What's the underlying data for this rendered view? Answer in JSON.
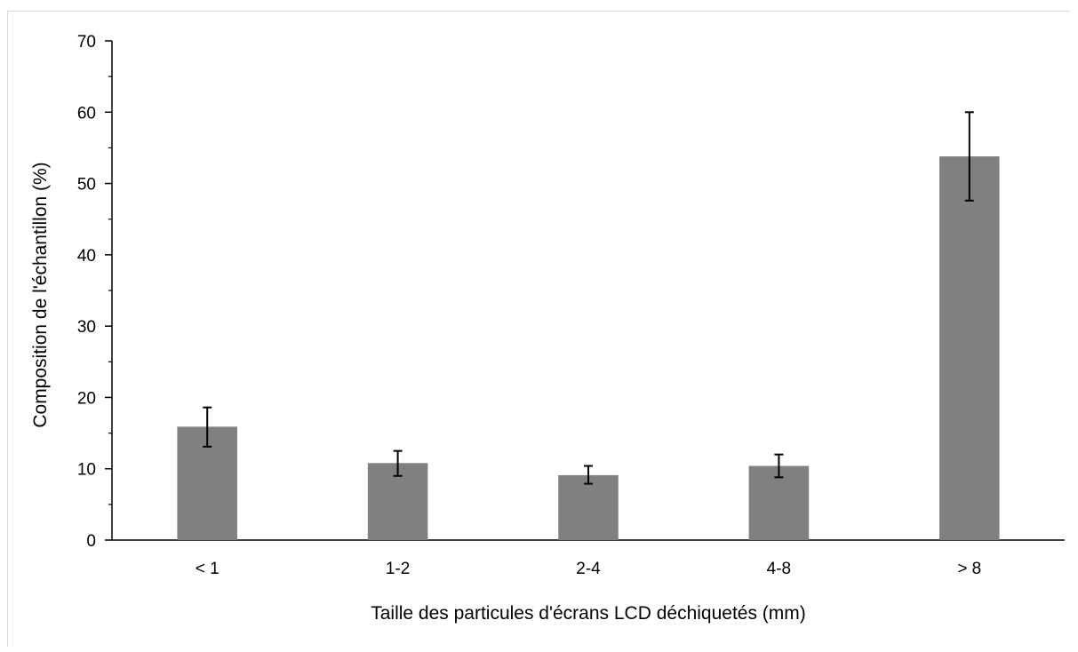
{
  "chart_data": {
    "type": "bar",
    "title": "",
    "xlabel": "Taille des particules d'écrans LCD déchiquetés (mm)",
    "ylabel": "Composition de l'échantillon (%)",
    "categories": [
      "< 1",
      "1-2",
      "2-4",
      "4-8",
      "> 8"
    ],
    "values": [
      15.9,
      10.8,
      9.1,
      10.4,
      53.8
    ],
    "error_low": [
      13.1,
      9.0,
      7.9,
      8.8,
      47.6
    ],
    "error_high": [
      18.6,
      12.5,
      10.4,
      12.0,
      60.0
    ],
    "ylim": [
      0,
      70
    ],
    "yticks": [
      "0",
      "10",
      "20",
      "30",
      "40",
      "50",
      "60",
      "70"
    ],
    "ytick_values": [
      0,
      10,
      20,
      30,
      40,
      50,
      60,
      70
    ],
    "grid": false,
    "legend": "none",
    "bar_color": "#808080",
    "error_color": "#000000"
  }
}
